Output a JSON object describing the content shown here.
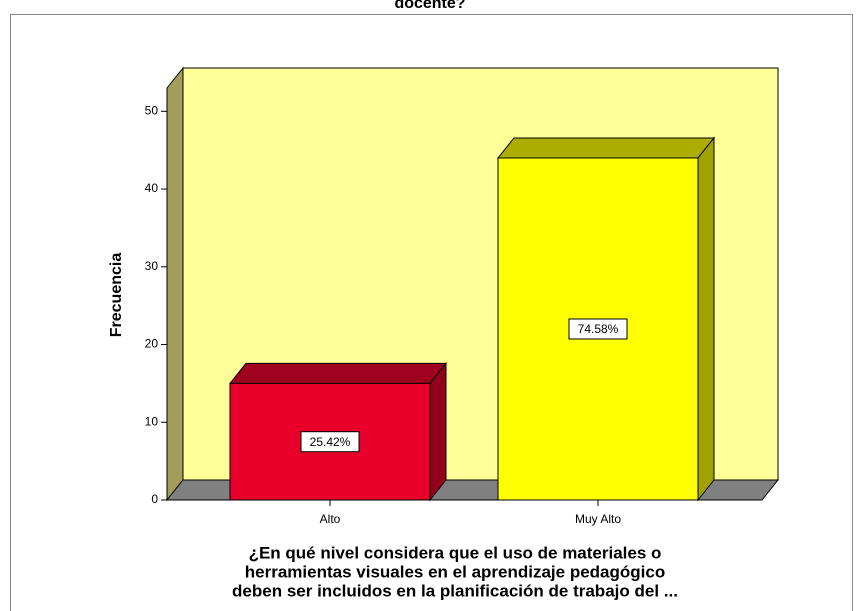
{
  "chart_data": {
    "type": "bar",
    "title": "docente?",
    "categories": [
      "Alto",
      "Muy Alto"
    ],
    "values": [
      15,
      44
    ],
    "value_labels": [
      "25.42%",
      "74.58%"
    ],
    "colors": [
      "#e8002b",
      "#ffff00"
    ],
    "ylabel": "Frecuencia",
    "xlabel": [
      "¿En qué nivel considera que el uso de materiales o",
      "herramientas visuales en el aprendizaje pedagógico",
      "deben ser incluidos en la planificación de trabajo del ..."
    ],
    "ylim": [
      0,
      53
    ],
    "yticks": [
      0,
      10,
      20,
      30,
      40,
      50
    ]
  }
}
